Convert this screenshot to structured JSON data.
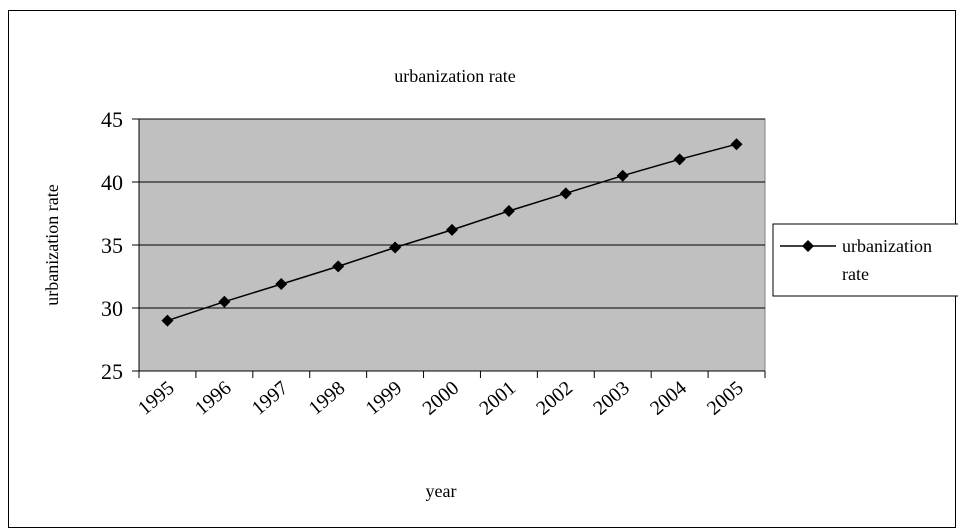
{
  "chart_data": {
    "type": "line",
    "title": "urbanization rate",
    "xlabel": "year",
    "ylabel": "urbanization rate",
    "categories": [
      "1995",
      "1996",
      "1997",
      "1998",
      "1999",
      "2000",
      "2001",
      "2002",
      "2003",
      "2004",
      "2005"
    ],
    "series": [
      {
        "name": "urbanization rate",
        "values": [
          29.0,
          30.5,
          31.9,
          33.3,
          34.8,
          36.2,
          37.7,
          39.1,
          40.5,
          41.8,
          43.0
        ]
      }
    ],
    "ylim": [
      25,
      45
    ],
    "yticks": [
      25,
      30,
      35,
      40,
      45
    ],
    "grid": true,
    "legend_position": "right",
    "colors": {
      "plot_background": "#c0c0c0",
      "line": "#000000",
      "gridline": "#000000"
    },
    "legend": {
      "line1": "urbanization",
      "line2": "rate"
    }
  }
}
